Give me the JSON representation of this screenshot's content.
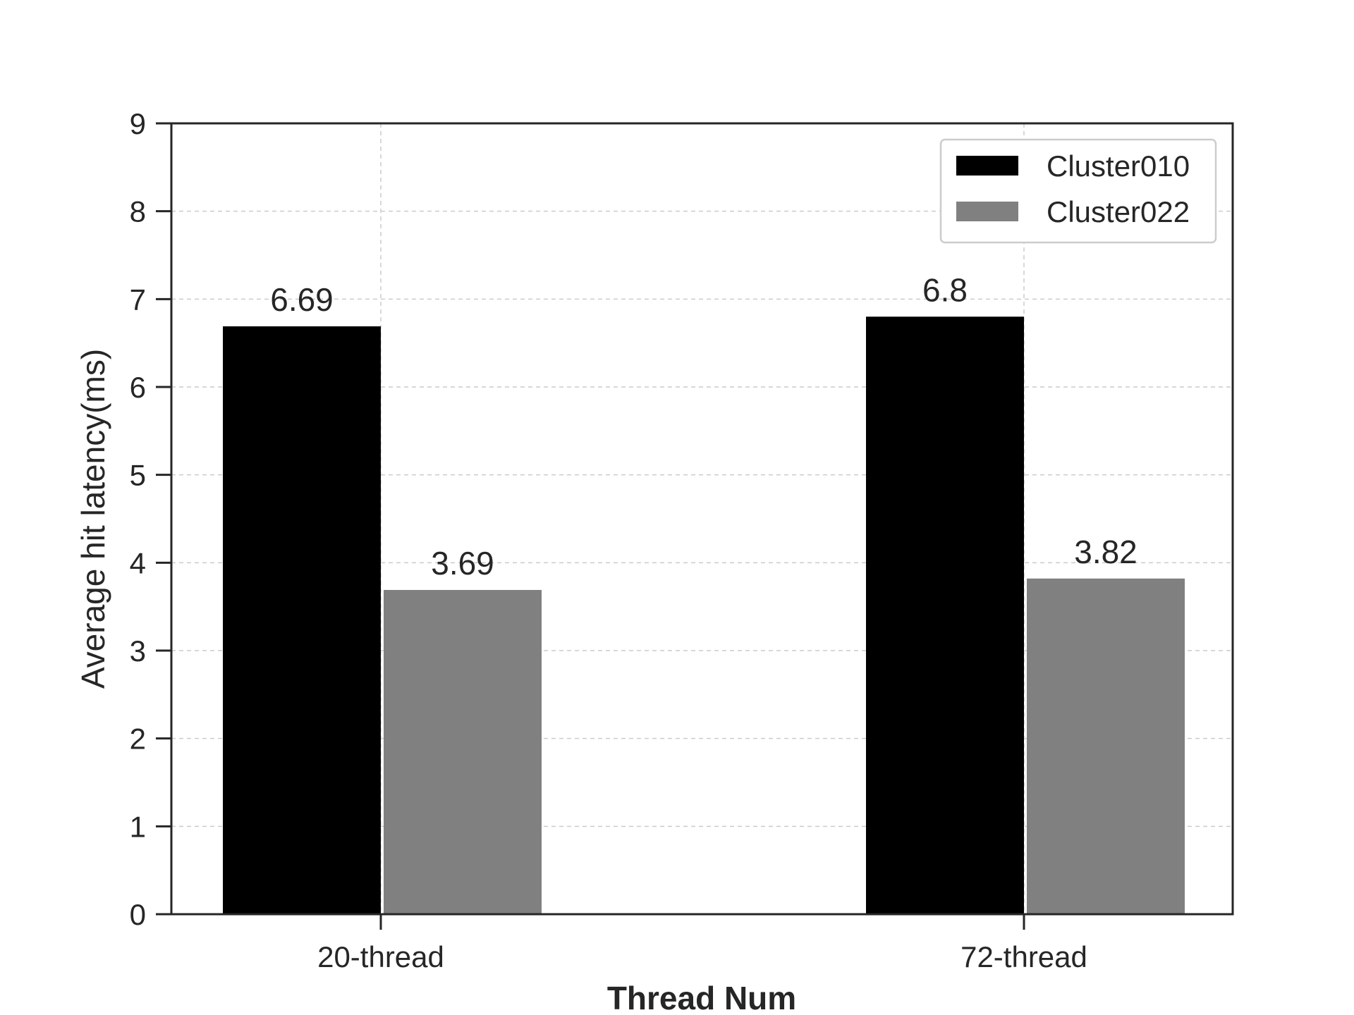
{
  "chart_data": {
    "type": "bar",
    "categories": [
      "20-thread",
      "72-thread"
    ],
    "series": [
      {
        "name": "Cluster010",
        "values": [
          6.69,
          6.8
        ],
        "color": "#000000"
      },
      {
        "name": "Cluster022",
        "values": [
          3.69,
          3.82
        ],
        "color": "#808080"
      }
    ],
    "value_labels": [
      [
        "6.69",
        "6.8"
      ],
      [
        "3.69",
        "3.82"
      ]
    ],
    "xlabel": "Thread Num",
    "ylabel": "Average hit latency(ms)",
    "ylim": [
      0,
      9
    ],
    "yticks": [
      "0",
      "1",
      "2",
      "3",
      "4",
      "5",
      "6",
      "7",
      "8",
      "9"
    ],
    "grid": true,
    "legend_position": "top-right"
  }
}
